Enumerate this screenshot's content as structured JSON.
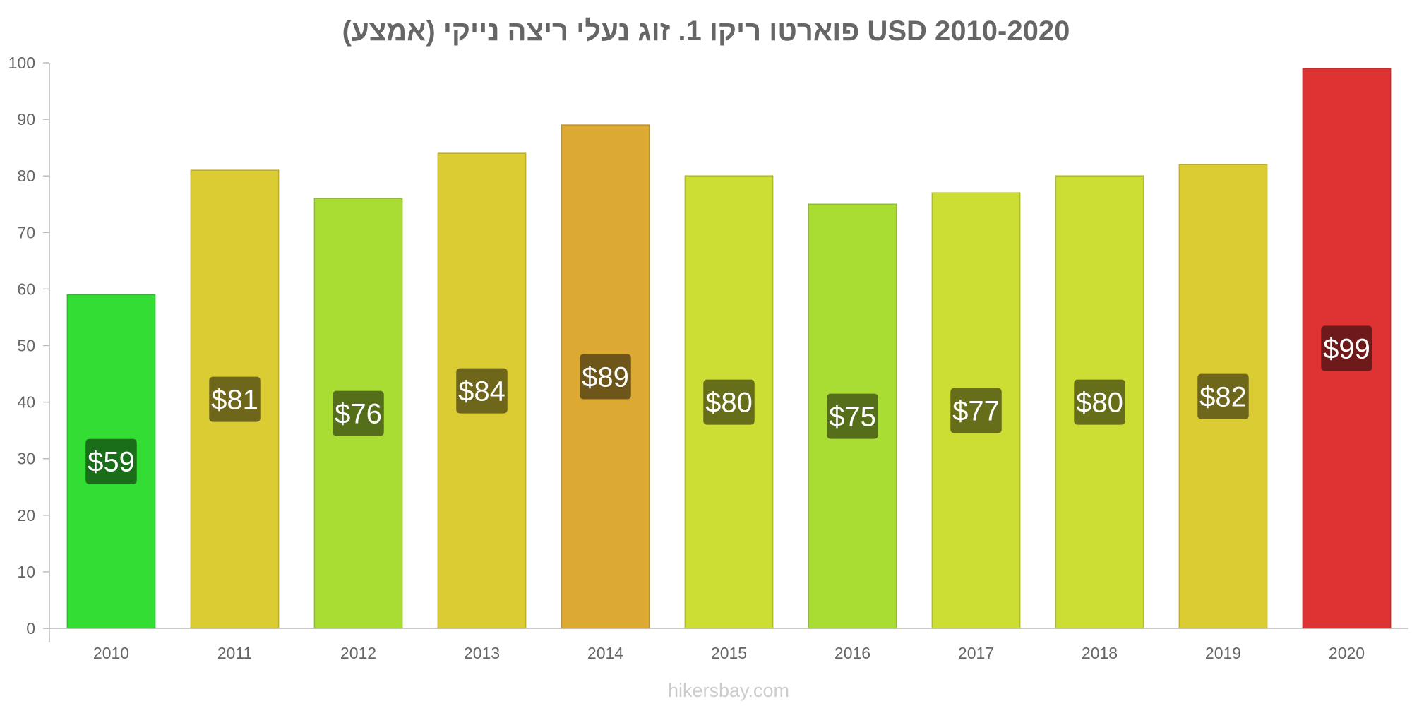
{
  "chart_data": {
    "type": "bar",
    "title": "פוארטו ריקו 1. זוג נעלי ריצה נייקי (אמצע) USD 2010-2020",
    "xlabel": "",
    "ylabel": "",
    "categories": [
      "2010",
      "2011",
      "2012",
      "2013",
      "2014",
      "2015",
      "2016",
      "2017",
      "2018",
      "2019",
      "2020"
    ],
    "values": [
      59,
      81,
      76,
      84,
      89,
      80,
      75,
      77,
      80,
      82,
      99
    ],
    "value_labels": [
      "$59",
      "$81",
      "$76",
      "$84",
      "$89",
      "$80",
      "$75",
      "$77",
      "$80",
      "$82",
      "$99"
    ],
    "bar_colors": [
      "#33dd33",
      "#dccc33",
      "#aadd33",
      "#dccc33",
      "#dcaa33",
      "#ccdd33",
      "#aadd33",
      "#ccdd33",
      "#ccdd33",
      "#dccc33",
      "#dd3333"
    ],
    "label_colors": [
      "#1a6e1a",
      "#6e661a",
      "#556e1a",
      "#6e661a",
      "#6e551a",
      "#666e1a",
      "#556e1a",
      "#666e1a",
      "#666e1a",
      "#6e661a",
      "#6e1a1a"
    ],
    "ylim": [
      0,
      100
    ],
    "yticks": [
      0,
      10,
      20,
      30,
      40,
      50,
      60,
      70,
      80,
      90,
      100
    ],
    "grid": false,
    "legend": "none"
  },
  "watermark": "hikersbay.com"
}
